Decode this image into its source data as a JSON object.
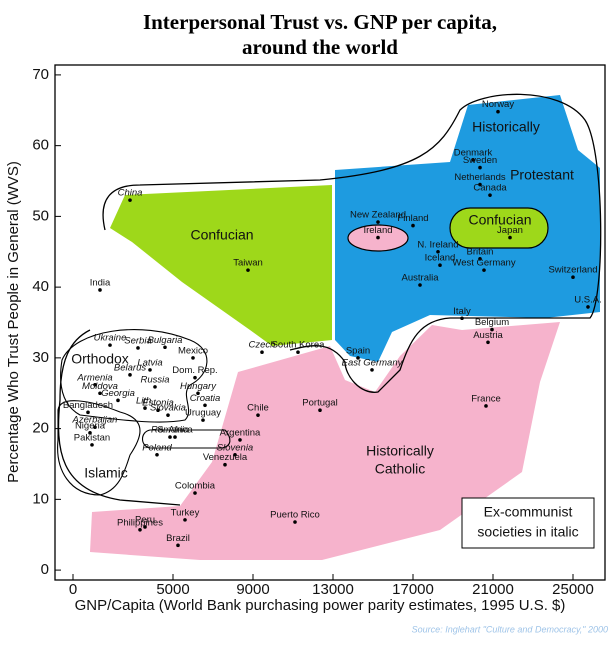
{
  "chart_data": {
    "type": "scatter",
    "title": [
      "Interpersonal Trust vs. GNP per capita,",
      "around the world"
    ],
    "x_label": "GNP/Capita (World Bank purchasing power parity estimates, 1995 U.S. $)",
    "y_label": "Percentage Who Trust People in General (WVS)",
    "source": "Source: Inglehart \"Culture and Democracy,\" 2000",
    "xlim": [
      -900,
      26600
    ],
    "ylim": [
      -1.4,
      71.4
    ],
    "xticks": [
      0,
      5000,
      9000,
      13000,
      17000,
      21000,
      25000
    ],
    "yticks": [
      0,
      10,
      20,
      30,
      40,
      50,
      60,
      70
    ],
    "point_color": "#000000",
    "region_labels": {
      "protestant": [
        "Historically",
        "Protestant"
      ],
      "confucian_left": "Confucian",
      "confucian_right": "Confucian",
      "catholic": [
        "Historically",
        "Catholic"
      ],
      "orthodox": "Orthodox",
      "islamic": "Islamic"
    },
    "legend_note": [
      "Ex-communist",
      "societies in italic"
    ],
    "points": [
      {
        "label": "Norway",
        "x": 21250,
        "y": 64.8,
        "italic": false
      },
      {
        "label": "Denmark",
        "x": 20000,
        "y": 58,
        "italic": false
      },
      {
        "label": "Sweden",
        "x": 20350,
        "y": 56.9,
        "italic": false
      },
      {
        "label": "Netherlands",
        "x": 20350,
        "y": 54.5,
        "italic": false
      },
      {
        "label": "Canada",
        "x": 20850,
        "y": 53,
        "italic": false
      },
      {
        "label": "Finland",
        "x": 17000,
        "y": 48.7,
        "italic": false
      },
      {
        "label": "New Zealand",
        "x": 15250,
        "y": 49.2,
        "italic": false
      },
      {
        "label": "Ireland",
        "x": 15250,
        "y": 47,
        "italic": false
      },
      {
        "label": "Japan",
        "x": 21850,
        "y": 47,
        "italic": false
      },
      {
        "label": "N. Ireland",
        "x": 18250,
        "y": 45,
        "italic": false
      },
      {
        "label": "Britain",
        "x": 20350,
        "y": 44,
        "italic": false
      },
      {
        "label": "Iceland",
        "x": 18350,
        "y": 43.1,
        "italic": false
      },
      {
        "label": "West Germany",
        "x": 20550,
        "y": 42.4,
        "italic": false
      },
      {
        "label": "Switzerland",
        "x": 25000,
        "y": 41.4,
        "italic": false
      },
      {
        "label": "Australia",
        "x": 17350,
        "y": 40.3,
        "italic": false
      },
      {
        "label": "U.S.A.",
        "x": 25750,
        "y": 37.2,
        "italic": false
      },
      {
        "label": "Italy",
        "x": 19450,
        "y": 35.6,
        "italic": false
      },
      {
        "label": "Belgium",
        "x": 20950,
        "y": 34,
        "italic": false
      },
      {
        "label": "Austria",
        "x": 20750,
        "y": 32.2,
        "italic": false
      },
      {
        "label": "Spain",
        "x": 14250,
        "y": 30,
        "italic": false
      },
      {
        "label": "East Germany",
        "x": 14950,
        "y": 28.3,
        "italic": true
      },
      {
        "label": "France",
        "x": 20650,
        "y": 23.2,
        "italic": false
      },
      {
        "label": "Portugal",
        "x": 12350,
        "y": 22.6,
        "italic": false
      },
      {
        "label": "Puerto Rico",
        "x": 11100,
        "y": 6.8,
        "italic": false
      },
      {
        "label": "South Korea",
        "x": 11250,
        "y": 30.8,
        "italic": false
      },
      {
        "label": "Czech",
        "x": 9450,
        "y": 30.8,
        "italic": true
      },
      {
        "label": "Taiwan",
        "x": 8750,
        "y": 42.4,
        "italic": false
      },
      {
        "label": "China",
        "x": 2850,
        "y": 52.3,
        "italic": true
      },
      {
        "label": "India",
        "x": 1350,
        "y": 39.6,
        "italic": false
      },
      {
        "label": "Mexico",
        "x": 6000,
        "y": 30,
        "italic": false
      },
      {
        "label": "Dom. Rep.",
        "x": 6100,
        "y": 27.2,
        "italic": false
      },
      {
        "label": "Hungary",
        "x": 6250,
        "y": 25,
        "italic": true
      },
      {
        "label": "Croatia",
        "x": 6600,
        "y": 23.3,
        "italic": true
      },
      {
        "label": "Uruguay",
        "x": 6500,
        "y": 21.2,
        "italic": false
      },
      {
        "label": "Chile",
        "x": 9250,
        "y": 21.9,
        "italic": false
      },
      {
        "label": "Argentina",
        "x": 8350,
        "y": 18.4,
        "italic": false
      },
      {
        "label": "Slovenia",
        "x": 8100,
        "y": 16.3,
        "italic": true
      },
      {
        "label": "Venezuela",
        "x": 7600,
        "y": 14.9,
        "italic": false
      },
      {
        "label": "Colombia",
        "x": 6100,
        "y": 10.9,
        "italic": false
      },
      {
        "label": "Turkey",
        "x": 5600,
        "y": 7.1,
        "italic": false
      },
      {
        "label": "Brazil",
        "x": 5250,
        "y": 3.5,
        "italic": false
      },
      {
        "label": "Peru",
        "x": 3600,
        "y": 6.1,
        "italic": false
      },
      {
        "label": "Philippines",
        "x": 3350,
        "y": 5.7,
        "italic": false
      },
      {
        "label": "S. Africa",
        "x": 5100,
        "y": 18.8,
        "italic": false
      },
      {
        "label": "Romania",
        "x": 4850,
        "y": 18.8,
        "italic": true
      },
      {
        "label": "Poland",
        "x": 4200,
        "y": 16.3,
        "italic": true
      },
      {
        "label": "Ukraine",
        "x": 1850,
        "y": 31.8,
        "italic": true
      },
      {
        "label": "Serbia",
        "x": 3250,
        "y": 31.4,
        "italic": true
      },
      {
        "label": "Bulgaria",
        "x": 4600,
        "y": 31.5,
        "italic": true
      },
      {
        "label": "Belarus",
        "x": 2850,
        "y": 27.6,
        "italic": true
      },
      {
        "label": "Latvia",
        "x": 3850,
        "y": 28.3,
        "italic": true
      },
      {
        "label": "Russia",
        "x": 4100,
        "y": 25.9,
        "italic": true
      },
      {
        "label": "Armenia",
        "x": 1100,
        "y": 26.2,
        "italic": true
      },
      {
        "label": "Moldova",
        "x": 1350,
        "y": 25,
        "italic": true
      },
      {
        "label": "Georgia",
        "x": 2250,
        "y": 24,
        "italic": true
      },
      {
        "label": "Lith.",
        "x": 3600,
        "y": 22.9,
        "italic": true
      },
      {
        "label": "Estonia",
        "x": 4250,
        "y": 22.6,
        "italic": true
      },
      {
        "label": "Slovakia",
        "x": 4750,
        "y": 21.9,
        "italic": true
      },
      {
        "label": "Azerbaijan",
        "x": 1100,
        "y": 20.2,
        "italic": true
      },
      {
        "label": "Bangladesh",
        "x": 750,
        "y": 22.3,
        "italic": false
      },
      {
        "label": "Nigeria",
        "x": 850,
        "y": 19.4,
        "italic": false
      },
      {
        "label": "Pakistan",
        "x": 950,
        "y": 17.7,
        "italic": false
      }
    ]
  }
}
